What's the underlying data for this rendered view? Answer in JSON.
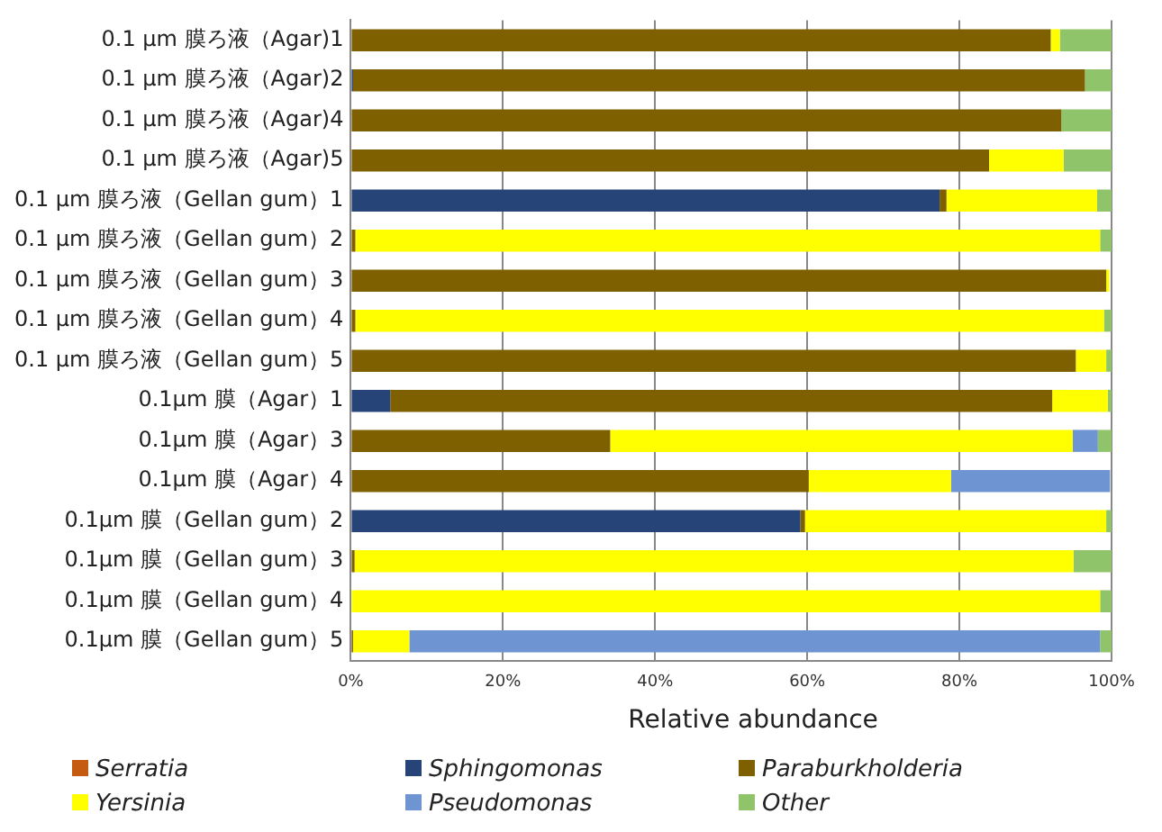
{
  "chart_data": {
    "type": "bar",
    "orientation": "horizontal",
    "stacked": true,
    "xlabel": "Relative abundance",
    "categories": [
      "0.1 µm 膜ろ液（Agar)1",
      "0.1 µm 膜ろ液（Agar)2",
      "0.1 µm 膜ろ液（Agar)4",
      "0.1 µm 膜ろ液（Agar)5",
      "0.1 µm 膜ろ液（Gellan gum）1",
      "0.1 µm 膜ろ液（Gellan gum）2",
      "0.1 µm 膜ろ液（Gellan gum）3",
      "0.1 µm 膜ろ液（Gellan gum）4",
      "0.1 µm 膜ろ液（Gellan gum）5",
      "0.1µm 膜（Agar）1",
      "0.1µm 膜（Agar）3",
      "0.1µm 膜（Agar）4",
      "0.1µm 膜（Gellan gum）2",
      "0.1µm 膜（Gellan gum）3",
      "0.1µm 膜（Gellan gum）4",
      "0.1µm 膜（Gellan gum）5"
    ],
    "series": [
      {
        "name": "Serratia",
        "color": "#c55a11",
        "values": [
          0,
          0,
          0,
          0,
          0,
          0,
          0,
          0,
          0,
          0,
          0,
          0,
          0,
          0,
          0,
          0
        ]
      },
      {
        "name": "Sphingomonas",
        "color": "#264478",
        "values": [
          0,
          0.3,
          0,
          0,
          77.4,
          0,
          0,
          0,
          0,
          5.2,
          0,
          0,
          59.1,
          0,
          0,
          0
        ]
      },
      {
        "name": "Paraburkholderia",
        "color": "#7f6000",
        "values": [
          92.0,
          96.2,
          93.4,
          83.9,
          0.9,
          0.6,
          99.3,
          0.6,
          95.3,
          87.0,
          34.1,
          60.2,
          0.6,
          0.5,
          0,
          0.3
        ]
      },
      {
        "name": "Yersinia",
        "color": "#ffff00",
        "values": [
          1.2,
          0,
          0,
          9.8,
          19.8,
          97.9,
          0.4,
          98.4,
          4.0,
          7.3,
          60.8,
          18.7,
          39.6,
          94.5,
          98.5,
          7.4
        ]
      },
      {
        "name": "Pseudomonas",
        "color": "#6f94d2",
        "values": [
          0,
          0,
          0,
          0,
          0,
          0,
          0,
          0,
          0,
          0,
          3.3,
          20.9,
          0,
          0,
          0,
          90.8
        ]
      },
      {
        "name": "Other",
        "color": "#8fc46a",
        "values": [
          6.8,
          3.5,
          6.6,
          6.3,
          1.9,
          1.5,
          null,
          1.0,
          0.7,
          0.5,
          1.8,
          null,
          0.7,
          5.0,
          1.5,
          1.5
        ]
      }
    ],
    "xlim": [
      0,
      100
    ],
    "xticks": [
      {
        "value": 0,
        "label": "0%"
      },
      {
        "value": 20,
        "label": "20%"
      },
      {
        "value": 40,
        "label": "40%"
      },
      {
        "value": 60,
        "label": "60%"
      },
      {
        "value": 80,
        "label": "80%"
      },
      {
        "value": 100,
        "label": "100%"
      }
    ],
    "grid": "x",
    "legend": "bottom"
  }
}
